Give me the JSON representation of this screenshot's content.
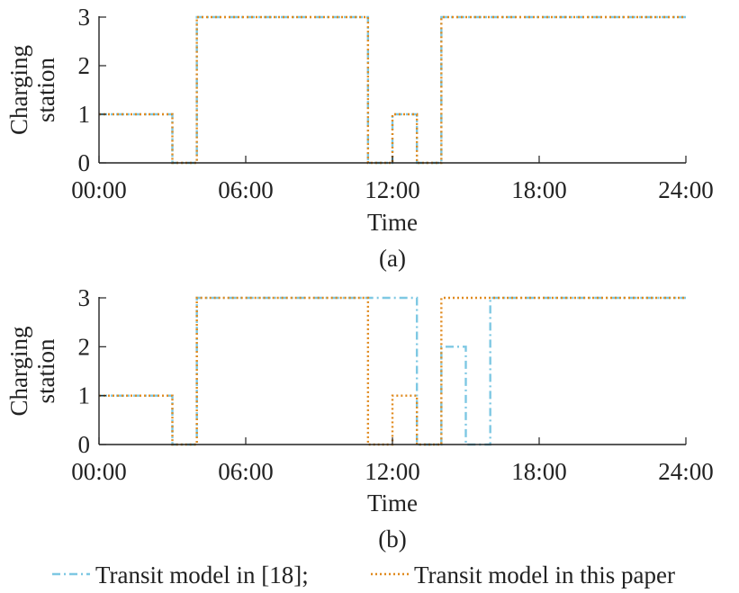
{
  "legend": {
    "items": [
      {
        "label": "Transit model in [18];",
        "color": "#7ec8e3",
        "dash": "dashdot"
      },
      {
        "label": "Transit model in this paper",
        "color": "#e08a1e",
        "dash": "dotted"
      }
    ]
  },
  "chart_data": [
    {
      "type": "line",
      "panel_label": "(a)",
      "xlabel": "Time",
      "ylabel": "Charging station",
      "ylabel_lines": [
        "Charging",
        "station"
      ],
      "xlim": [
        0,
        24
      ],
      "ylim": [
        0,
        3
      ],
      "xticks": [
        0,
        6,
        12,
        18,
        24
      ],
      "xtick_labels": [
        "00:00",
        "06:00",
        "12:00",
        "18:00",
        "24:00"
      ],
      "yticks": [
        0,
        1,
        2,
        3
      ],
      "ytick_labels": [
        "0",
        "1",
        "2",
        "3"
      ],
      "grid": false,
      "step": true,
      "series": [
        {
          "name": "Transit model in [18];",
          "color": "#7ec8e3",
          "dash": "dashdot",
          "x": [
            0,
            3,
            4,
            11,
            12,
            13,
            14,
            24
          ],
          "y": [
            1,
            0,
            3,
            0,
            1,
            0,
            3,
            3
          ]
        },
        {
          "name": "Transit model in this paper",
          "color": "#e08a1e",
          "dash": "dotted",
          "x": [
            0,
            3,
            4,
            11,
            12,
            13,
            14,
            24
          ],
          "y": [
            1,
            0,
            3,
            0,
            1,
            0,
            3,
            3
          ]
        }
      ]
    },
    {
      "type": "line",
      "panel_label": "(b)",
      "xlabel": "Time",
      "ylabel": "Charging station",
      "ylabel_lines": [
        "Charging",
        "station"
      ],
      "xlim": [
        0,
        24
      ],
      "ylim": [
        0,
        3
      ],
      "xticks": [
        0,
        6,
        12,
        18,
        24
      ],
      "xtick_labels": [
        "00:00",
        "06:00",
        "12:00",
        "18:00",
        "24:00"
      ],
      "yticks": [
        0,
        1,
        2,
        3
      ],
      "ytick_labels": [
        "0",
        "1",
        "2",
        "3"
      ],
      "grid": false,
      "step": true,
      "series": [
        {
          "name": "Transit model in [18];",
          "color": "#7ec8e3",
          "dash": "dashdot",
          "x": [
            0,
            3,
            4,
            13,
            14,
            15,
            16,
            24
          ],
          "y": [
            1,
            0,
            3,
            0,
            2,
            0,
            3,
            3
          ]
        },
        {
          "name": "Transit model in this paper",
          "color": "#e08a1e",
          "dash": "dotted",
          "x": [
            0,
            3,
            4,
            11,
            12,
            13,
            14,
            24
          ],
          "y": [
            1,
            0,
            3,
            0,
            1,
            0,
            3,
            3
          ]
        }
      ]
    }
  ]
}
